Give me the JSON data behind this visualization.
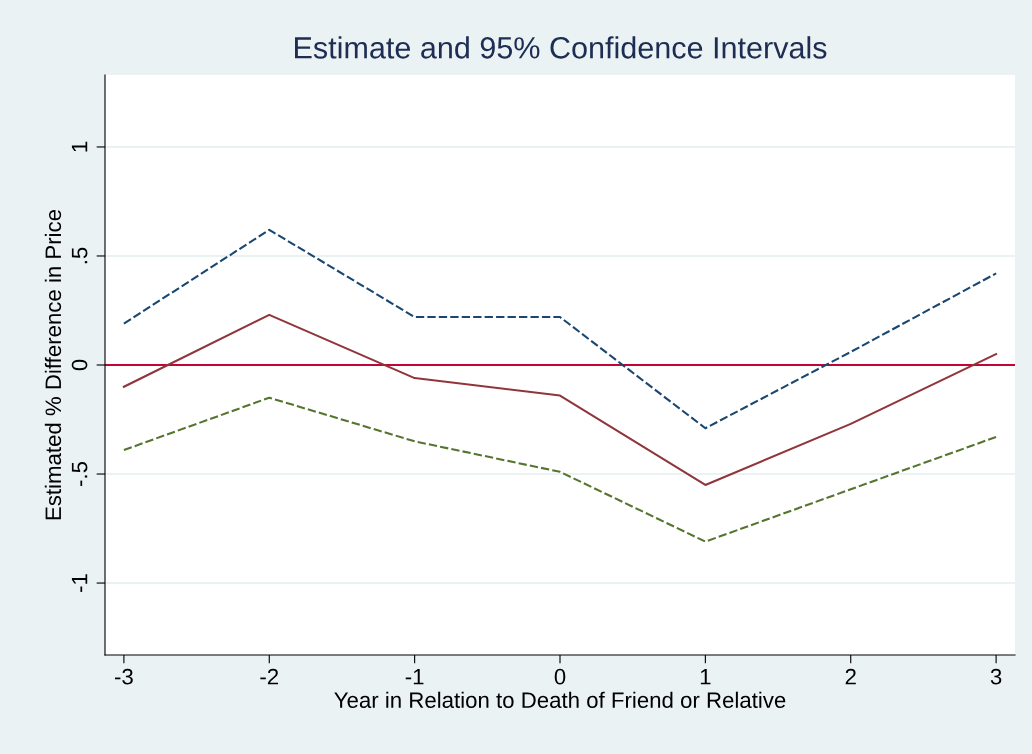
{
  "chart_data": {
    "type": "line",
    "title": "Estimate and 95% Confidence Intervals",
    "xlabel": "Year in Relation to Death of Friend or Relative",
    "ylabel": "Estimated % Difference in Price",
    "x": [
      -3,
      -2,
      -1,
      0,
      1,
      2,
      3
    ],
    "series": [
      {
        "color": "#1a476f",
        "line_style": "dashed",
        "values": [
          0.19,
          0.62,
          0.22,
          0.22,
          -0.29,
          0.06,
          0.42
        ]
      },
      {
        "color": "#90353b",
        "line_style": "solid",
        "values": [
          -0.1,
          0.23,
          -0.06,
          -0.14,
          -0.55,
          -0.27,
          0.05
        ]
      },
      {
        "color": "#55752f",
        "line_style": "dashed",
        "values": [
          -0.39,
          -0.15,
          -0.35,
          -0.49,
          -0.81,
          -0.57,
          -0.33
        ]
      }
    ],
    "xlim": [
      -3.13,
      3.13
    ],
    "xticks": [
      -3,
      -2,
      -1,
      0,
      1,
      2,
      3
    ],
    "ylim": [
      -1.33,
      1.33
    ],
    "yticks": [
      {
        "value": -1,
        "label": "-1"
      },
      {
        "value": -0.5,
        "label": "-.5"
      },
      {
        "value": 0,
        "label": "0"
      },
      {
        "value": 0.5,
        "label": ".5"
      },
      {
        "value": 1,
        "label": "1"
      }
    ],
    "ref_lines": [
      {
        "axis": "y",
        "value": 0,
        "color": "#c10534"
      }
    ],
    "grid": "y",
    "legend": false,
    "marker": "none"
  }
}
